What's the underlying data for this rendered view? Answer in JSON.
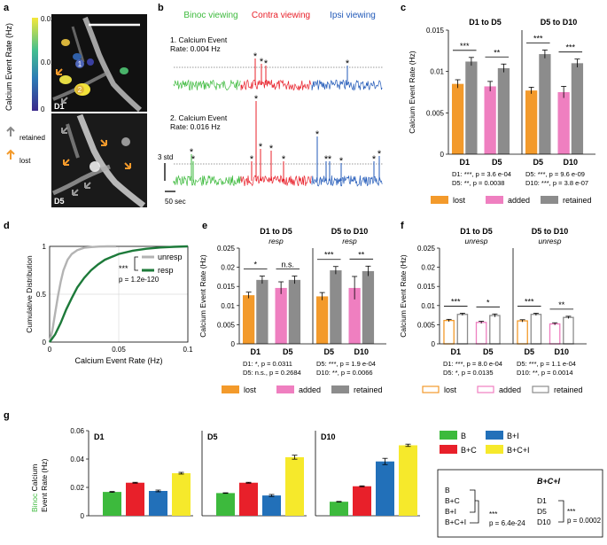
{
  "panels": {
    "a": {
      "letter": "a",
      "colorbar_label": "Calcium Event Rate (Hz)",
      "colorbar_ticks": [
        "0.02",
        "0.01",
        "0"
      ],
      "day_top": "D1",
      "day_bottom": "D5",
      "cell1": "1",
      "cell2": "2",
      "legend_retained": "retained",
      "legend_lost": "lost",
      "colors": {
        "retained": "#8a8a8a",
        "lost": "#f39a2b"
      }
    },
    "b": {
      "letter": "b",
      "headers": {
        "binoc": "Binoc viewing",
        "contra": "Contra viewing",
        "ipsi": "Ipsi viewing"
      },
      "header_colors": {
        "binoc": "#3dba3d",
        "contra": "#e8202a",
        "ipsi": "#2159b8"
      },
      "trace1_label": "1. Calcium Event",
      "trace1_rate": "Rate: 0.004 Hz",
      "trace2_label": "2. Calcium Event",
      "trace2_rate": "Rate: 0.016 Hz",
      "scale_y": "3 std",
      "scale_x": "50 sec"
    },
    "c": {
      "letter": "c",
      "chart_data": {
        "type": "bar",
        "ylabel": "Calcium Event Rate  (Hz)",
        "ylim": [
          0,
          0.015
        ],
        "yticks": [
          "0.015",
          "0.01",
          "0.005",
          "0"
        ],
        "groups": [
          {
            "title": "D1 to D5",
            "subtitle": "",
            "bars": [
              {
                "cat": "D1",
                "kind": "lost",
                "value": 0.0085,
                "err": 0.0005
              },
              {
                "cat": "D1",
                "kind": "retained",
                "value": 0.0112,
                "err": 0.0005
              },
              {
                "cat": "D5",
                "kind": "added",
                "value": 0.0082,
                "err": 0.0006
              },
              {
                "cat": "D5",
                "kind": "retained",
                "value": 0.0104,
                "err": 0.0005
              }
            ],
            "sig": [
              "***",
              "**"
            ],
            "labels": [
              "D1",
              "D5"
            ],
            "stats": [
              "D1: ***, p = 3.6 e-04",
              "D5: **, p = 0.0038"
            ]
          },
          {
            "title": "D5 to D10",
            "subtitle": "",
            "bars": [
              {
                "cat": "D5",
                "kind": "lost",
                "value": 0.0077,
                "err": 0.0004
              },
              {
                "cat": "D5",
                "kind": "retained",
                "value": 0.0121,
                "err": 0.0005
              },
              {
                "cat": "D10",
                "kind": "added",
                "value": 0.0075,
                "err": 0.0007
              },
              {
                "cat": "D10",
                "kind": "retained",
                "value": 0.011,
                "err": 0.0005
              }
            ],
            "sig": [
              "***",
              "***"
            ],
            "labels": [
              "D5",
              "D10"
            ],
            "stats": [
              "D5: ***, p = 9.6 e-09",
              "D10: ***, p = 3.8 e-07"
            ]
          }
        ],
        "legend": [
          "lost",
          "added",
          "retained"
        ]
      }
    },
    "d": {
      "letter": "d",
      "chart_data": {
        "type": "line",
        "xlabel": "Calcium Event Rate (Hz)",
        "ylabel": "Cumulative Distribution",
        "xlim": [
          0,
          0.1
        ],
        "ylim": [
          0,
          1
        ],
        "xticks": [
          "0",
          "0.05",
          "0.1"
        ],
        "yticks": [
          "1",
          "0.5",
          "0"
        ],
        "series": [
          {
            "name": "unresp",
            "color": "#b3b3b3",
            "x": [
              0,
              0.002,
              0.004,
              0.006,
              0.008,
              0.01,
              0.013,
              0.016,
              0.02,
              0.025,
              0.03,
              0.036,
              0.042,
              0.048
            ],
            "y": [
              0,
              0.12,
              0.3,
              0.48,
              0.63,
              0.75,
              0.86,
              0.92,
              0.96,
              0.985,
              0.993,
              0.998,
              1.0,
              1.0
            ]
          },
          {
            "name": "resp",
            "color": "#1d7a3a",
            "x": [
              0,
              0.004,
              0.008,
              0.012,
              0.016,
              0.02,
              0.025,
              0.03,
              0.035,
              0.04,
              0.05,
              0.06,
              0.07,
              0.08,
              0.09,
              0.1
            ],
            "y": [
              0,
              0.08,
              0.2,
              0.34,
              0.46,
              0.57,
              0.67,
              0.75,
              0.81,
              0.86,
              0.92,
              0.955,
              0.975,
              0.988,
              0.995,
              1.0
            ]
          }
        ],
        "sig": "***",
        "pvalue": "p = 1.2e-120"
      }
    },
    "e": {
      "letter": "e",
      "chart_data": {
        "type": "bar",
        "ylabel": "Calcium Event Rate (Hz)",
        "ylim": [
          0,
          0.025
        ],
        "yticks": [
          "0.025",
          "0.02",
          "0.015",
          "0.01",
          "0.005",
          "0"
        ],
        "groups": [
          {
            "title": "D1 to D5",
            "subtitle": "resp",
            "bars": [
              {
                "cat": "D1",
                "kind": "lost",
                "value": 0.0127,
                "err": 0.0008
              },
              {
                "cat": "D1",
                "kind": "retained",
                "value": 0.0167,
                "err": 0.001
              },
              {
                "cat": "D5",
                "kind": "added",
                "value": 0.0146,
                "err": 0.0016
              },
              {
                "cat": "D5",
                "kind": "retained",
                "value": 0.0167,
                "err": 0.001
              }
            ],
            "sig": [
              "*",
              "n.s."
            ],
            "labels": [
              "D1",
              "D5"
            ],
            "stats": [
              "D1: *, p = 0.0311",
              "D5: n.s., p = 0.2684"
            ]
          },
          {
            "title": "D5 to D10",
            "subtitle": "resp",
            "bars": [
              {
                "cat": "D5",
                "kind": "lost",
                "value": 0.0124,
                "err": 0.001
              },
              {
                "cat": "D5",
                "kind": "retained",
                "value": 0.0192,
                "err": 0.001
              },
              {
                "cat": "D10",
                "kind": "added",
                "value": 0.0146,
                "err": 0.003
              },
              {
                "cat": "D10",
                "kind": "retained",
                "value": 0.019,
                "err": 0.0013
              }
            ],
            "sig": [
              "***",
              "**"
            ],
            "labels": [
              "D5",
              "D10"
            ],
            "stats": [
              "D5: ***, p = 1.9 e-04",
              "D10: **, p = 0.0066"
            ]
          }
        ],
        "legend": [
          "lost",
          "added",
          "retained"
        ]
      }
    },
    "f": {
      "letter": "f",
      "chart_data": {
        "type": "bar",
        "ylabel": "Calcium Event Rate (Hz)",
        "ylim": [
          0,
          0.025
        ],
        "yticks": [
          "0.025",
          "0.02",
          "0.015",
          "0.01",
          "0.005",
          "0"
        ],
        "hollow": true,
        "groups": [
          {
            "title": "D1 to D5",
            "subtitle": "unresp",
            "bars": [
              {
                "cat": "D1",
                "kind": "lost",
                "value": 0.0061,
                "err": 0.0003
              },
              {
                "cat": "D1",
                "kind": "retained",
                "value": 0.0077,
                "err": 0.0003
              },
              {
                "cat": "D5",
                "kind": "added",
                "value": 0.0056,
                "err": 0.0003
              },
              {
                "cat": "D5",
                "kind": "retained",
                "value": 0.0074,
                "err": 0.0004
              }
            ],
            "sig": [
              "***",
              "*"
            ],
            "labels": [
              "D1",
              "D5"
            ],
            "stats": [
              "D1: ***, p = 8.0 e-04",
              "D5: *, p = 0.0135"
            ]
          },
          {
            "title": "D5 to D10",
            "subtitle": "unresp",
            "bars": [
              {
                "cat": "D5",
                "kind": "lost",
                "value": 0.006,
                "err": 0.0003
              },
              {
                "cat": "D5",
                "kind": "retained",
                "value": 0.0077,
                "err": 0.0003
              },
              {
                "cat": "D10",
                "kind": "added",
                "value": 0.0052,
                "err": 0.0003
              },
              {
                "cat": "D10",
                "kind": "retained",
                "value": 0.0069,
                "err": 0.0003
              }
            ],
            "sig": [
              "***",
              "**"
            ],
            "labels": [
              "D5",
              "D10"
            ],
            "stats": [
              "D5: ***, p = 1.1 e-04",
              "D10: **, p = 0.0014"
            ]
          }
        ],
        "legend": [
          "lost",
          "added",
          "retained"
        ]
      }
    },
    "g": {
      "letter": "g",
      "ylabel_colored": "Binoc",
      "ylabel_rest": " Calcium",
      "ylabel_line2": "Event Rate (Hz)",
      "chart_data": {
        "type": "bar",
        "ylim": [
          0,
          0.06
        ],
        "yticks": [
          "0.06",
          "0.04",
          "0.02",
          "0"
        ],
        "categories": [
          "B",
          "B+C",
          "B+I",
          "B+C+I"
        ],
        "colors": [
          "#3dba3d",
          "#e8202a",
          "#2270b9",
          "#f6e92b"
        ],
        "groups": [
          {
            "title": "D1",
            "values": [
              0.0168,
              0.0233,
              0.0175,
              0.03
            ],
            "errs": [
              0.0003,
              0.0003,
              0.0006,
              0.0006
            ]
          },
          {
            "title": "D5",
            "values": [
              0.016,
              0.0233,
              0.0143,
              0.0413
            ],
            "errs": [
              0.0002,
              0.0003,
              0.0007,
              0.0014
            ]
          },
          {
            "title": "D10",
            "values": [
              0.0099,
              0.0208,
              0.0383,
              0.0497
            ],
            "errs": [
              0.0002,
              0.0003,
              0.0022,
              0.0008
            ]
          }
        ],
        "legend": [
          "B",
          "B+I",
          "B+C",
          "B+C+I"
        ]
      },
      "stats_box": {
        "left_items": [
          "B",
          "B+C",
          "B+I",
          "B+C+I"
        ],
        "left_sig": "***",
        "left_p": "p = 6.4e-24",
        "right_title": "B+C+I",
        "right_items": [
          "D1",
          "D5",
          "D10"
        ],
        "right_sig": "***",
        "right_p": "p = 0.0002"
      }
    }
  },
  "colors": {
    "lost": "#f39a2b",
    "added": "#ef7fc0",
    "retained": "#8c8c8c",
    "orange": "#f39a2b"
  }
}
